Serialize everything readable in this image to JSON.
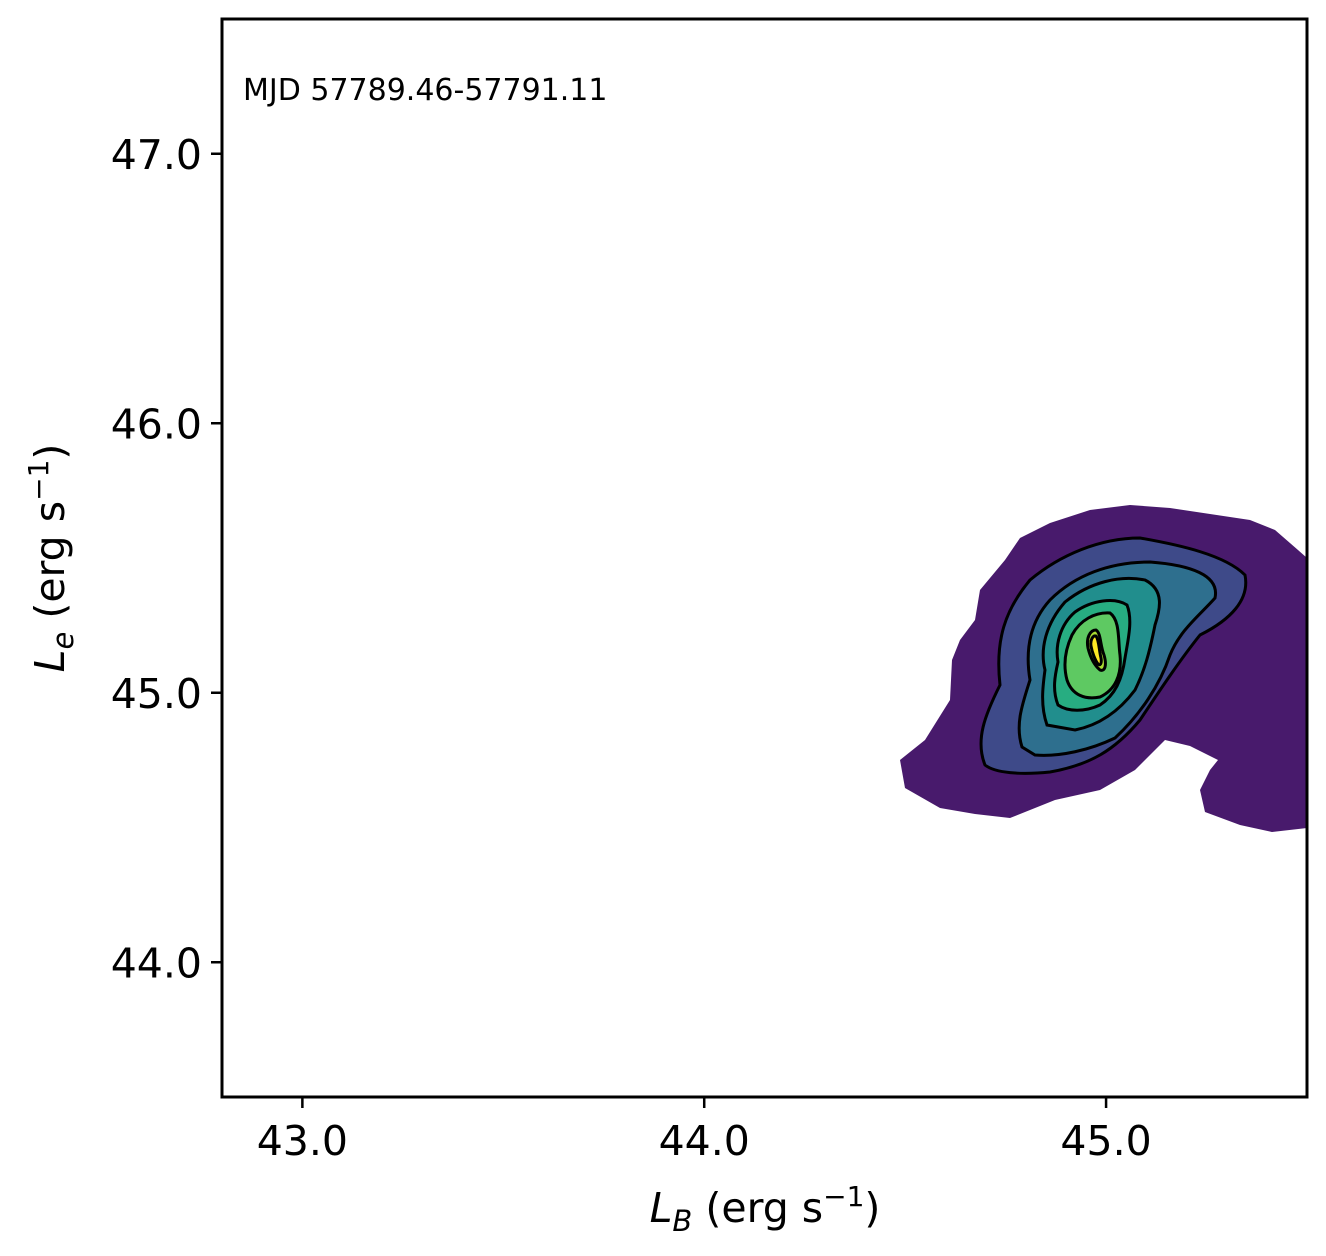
{
  "chart_data": {
    "type": "contour",
    "annotation": "MJD 57789.46-57791.11",
    "x_label": {
      "main": "L",
      "sub": "B",
      "unit_pre": " (erg s",
      "sup": "−1",
      "unit_post": ")"
    },
    "y_label": {
      "main": "L",
      "sub": "e",
      "unit_pre": " (erg s",
      "sup": "−1",
      "unit_post": ")"
    },
    "xlim": [
      42.8,
      45.5
    ],
    "ylim": [
      43.5,
      47.5
    ],
    "x_ticks": [
      {
        "value": 43.0,
        "label": "43.0"
      },
      {
        "value": 44.0,
        "label": "44.0"
      },
      {
        "value": 45.0,
        "label": "45.0"
      }
    ],
    "y_ticks": [
      {
        "value": 44.0,
        "label": "44.0"
      },
      {
        "value": 45.0,
        "label": "45.0"
      },
      {
        "value": 46.0,
        "label": "46.0"
      },
      {
        "value": 47.0,
        "label": "47.0"
      }
    ],
    "colormap": "viridis",
    "levels": [
      {
        "level": 1,
        "color": "#481a6c"
      },
      {
        "level": 2,
        "color": "#3e4a89"
      },
      {
        "level": 3,
        "color": "#2e6f8e"
      },
      {
        "level": 4,
        "color": "#218e8d"
      },
      {
        "level": 5,
        "color": "#27ad81"
      },
      {
        "level": 6,
        "color": "#5ec962"
      },
      {
        "level": 7,
        "color": "#aadc32"
      },
      {
        "level": 8,
        "color": "#fde725"
      }
    ],
    "density_peak": {
      "x": 44.98,
      "y": 45.15
    }
  }
}
